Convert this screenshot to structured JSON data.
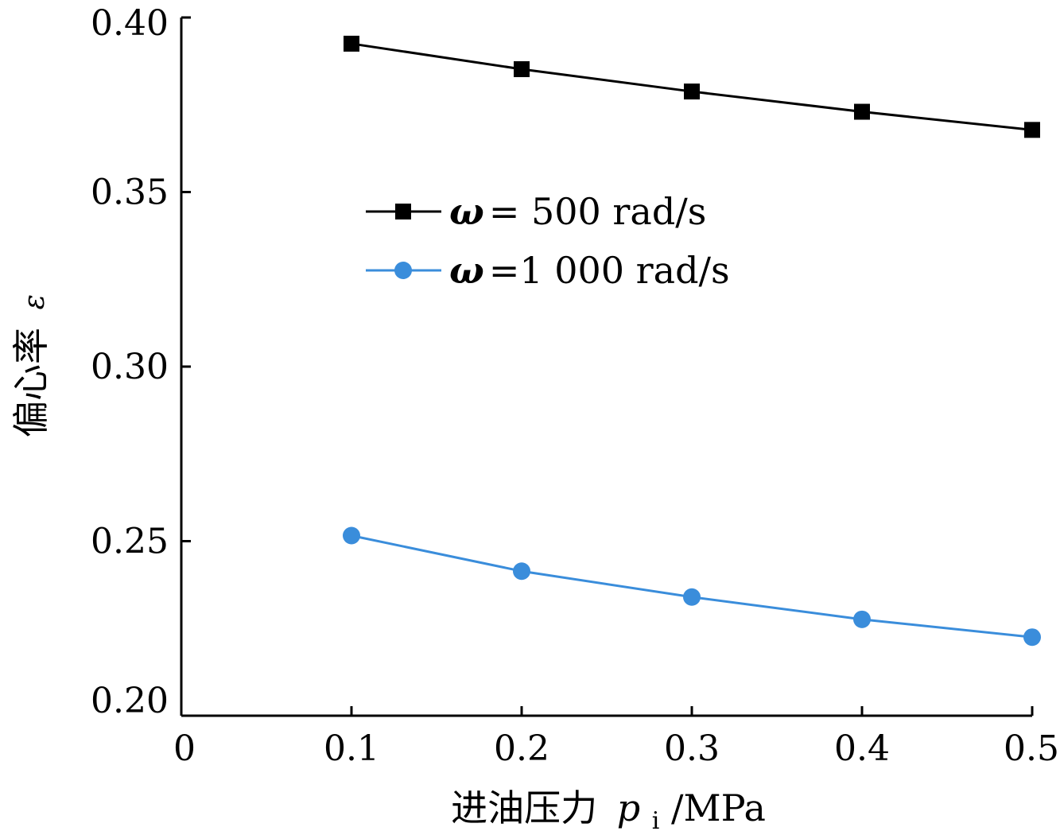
{
  "chart_data": {
    "type": "line",
    "title": "",
    "xlabel": {
      "prefix": "进油压力",
      "symbol": "p",
      "subscript": "i",
      "unit": "/MPa"
    },
    "ylabel": {
      "text": "偏心率",
      "symbol": "ε"
    },
    "xlim": [
      0,
      0.5
    ],
    "ylim": [
      0.2,
      0.4
    ],
    "x_ticks": [
      0,
      0.1,
      0.2,
      0.3,
      0.4,
      0.5
    ],
    "x_tick_labels": [
      "0",
      "0.1",
      "0.2",
      "0.3",
      "0.4",
      "0.5"
    ],
    "y_ticks": [
      0.2,
      0.25,
      0.3,
      0.35,
      0.4
    ],
    "y_tick_labels": [
      "0.20",
      "0.25",
      "0.30",
      "0.35",
      "0.40"
    ],
    "grid": false,
    "legend_position": "upper-center",
    "x": [
      0.1,
      0.2,
      0.3,
      0.4,
      0.5
    ],
    "series": [
      {
        "name_symbol": "ω",
        "name_rest": "= 500 rad/s",
        "values": [
          0.3925,
          0.3852,
          0.3788,
          0.373,
          0.3678
        ],
        "color": "#000000",
        "marker": "square"
      },
      {
        "name_symbol": "ω",
        "name_rest": "=1 000 rad/s",
        "values": [
          0.2516,
          0.2414,
          0.234,
          0.2276,
          0.2225
        ],
        "color": "#3a8ddb",
        "marker": "circle"
      }
    ]
  }
}
